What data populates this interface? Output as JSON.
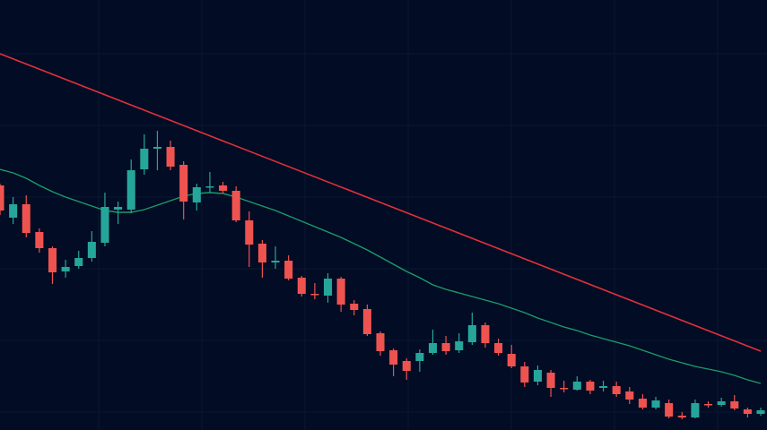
{
  "chart_data": {
    "type": "candlestick",
    "categories": [
      null,
      null,
      null,
      null,
      null,
      null,
      null,
      null,
      null,
      null,
      null,
      null,
      null,
      null,
      null,
      null,
      null,
      null,
      null,
      null,
      null,
      null,
      null,
      null,
      null,
      null,
      null,
      null,
      null,
      null,
      null,
      null,
      null,
      null,
      null,
      null,
      null,
      null,
      null,
      null,
      null,
      null,
      null,
      null,
      null,
      null,
      null,
      null,
      null,
      null,
      null,
      null,
      null,
      null,
      null,
      null,
      null,
      null,
      null
    ],
    "open": [
      273,
      237,
      252,
      221,
      203,
      177,
      183,
      192,
      209,
      246,
      246,
      291,
      314,
      316,
      296,
      254,
      271,
      273,
      267,
      234,
      208,
      187,
      189,
      170,
      152,
      150,
      169,
      141,
      135,
      108,
      89,
      77,
      77,
      86,
      97,
      89,
      98,
      117,
      97,
      85,
      71,
      54,
      64,
      47,
      45,
      54,
      47,
      49,
      43,
      35,
      25,
      30,
      16,
      14,
      29,
      28,
      32,
      23,
      18
    ],
    "high": [
      275,
      260,
      262,
      225,
      205,
      190,
      200,
      222,
      265,
      255,
      302,
      330,
      334,
      323,
      300,
      275,
      288,
      277,
      272,
      244,
      212,
      205,
      195,
      172,
      164,
      175,
      171,
      145,
      140,
      110,
      91,
      80,
      90,
      112,
      105,
      108,
      131,
      120,
      102,
      95,
      76,
      72,
      67,
      55,
      60,
      56,
      55,
      54,
      48,
      40,
      37,
      34,
      20,
      34,
      32,
      36,
      39,
      25,
      25
    ],
    "low": [
      240,
      230,
      215,
      198,
      163,
      170,
      180,
      188,
      205,
      230,
      242,
      285,
      290,
      290,
      235,
      245,
      265,
      264,
      232,
      182,
      170,
      180,
      167,
      149,
      146,
      142,
      132,
      128,
      105,
      83,
      60,
      56,
      65,
      84,
      84,
      86,
      95,
      92,
      83,
      69,
      48,
      50,
      37,
      42,
      44,
      40,
      43,
      37,
      29,
      23,
      23,
      13,
      12,
      13,
      25,
      26,
      22,
      14,
      16
    ],
    "close": [
      245,
      252,
      220,
      203,
      176,
      182,
      192,
      210,
      249,
      249,
      290,
      314,
      316,
      294,
      255,
      271,
      272,
      267,
      234,
      207,
      187,
      189,
      169,
      152,
      151,
      169,
      140,
      134,
      107,
      88,
      73,
      66,
      86,
      97,
      88,
      99,
      117,
      97,
      86,
      71,
      53,
      67,
      47,
      46,
      54,
      44,
      49,
      40,
      34,
      25,
      33,
      15,
      14,
      30,
      28,
      32,
      24,
      18,
      22
    ],
    "up_color": "#26a69a",
    "down_color": "#ef5350",
    "moving_average": {
      "color": "#1a9c6c",
      "values": [
        291,
        287,
        281,
        273,
        266,
        260,
        255,
        250,
        245,
        243,
        243,
        246,
        251,
        256,
        261,
        264,
        265,
        264,
        260,
        255,
        250,
        245,
        239,
        233,
        227,
        221,
        215,
        208,
        201,
        193,
        185,
        177,
        170,
        162,
        157,
        153,
        149,
        145,
        141,
        136,
        131,
        125,
        120,
        115,
        111,
        106,
        102,
        98,
        94,
        89,
        84,
        79,
        75,
        71,
        68,
        65,
        61,
        56,
        52
      ]
    },
    "trendline": {
      "color": "#e0313b",
      "values": [
        420,
        88
      ]
    },
    "ylim": [
      0,
      480
    ]
  }
}
